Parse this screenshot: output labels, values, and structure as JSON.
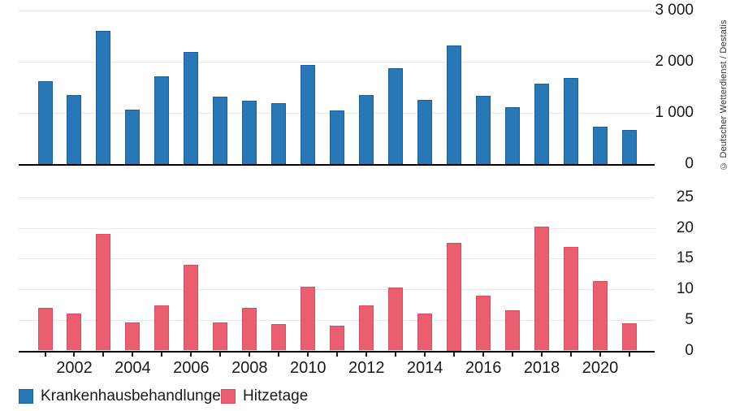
{
  "credit": "© Deutscher Wetterdienst / Destatis",
  "legend": [
    {
      "label": "Krankenhausbehandlungen",
      "color": "#2878b8",
      "border": "#1c5f98"
    },
    {
      "label": "Hitzetage",
      "color": "#eb5e6f",
      "border": "#d44f63"
    }
  ],
  "colors": {
    "background": "#ffffff",
    "gridline": "#e7e7e7",
    "axis": "#000000",
    "text": "#1a1a1a",
    "blue": "#2878b8",
    "red": "#eb5e6f"
  },
  "xaxis": {
    "tick_years": [
      2001,
      2002,
      2003,
      2004,
      2005,
      2006,
      2007,
      2008,
      2009,
      2010,
      2011,
      2012,
      2013,
      2014,
      2015,
      2016,
      2017,
      2018,
      2019,
      2020,
      2021
    ],
    "label_years": [
      "2002",
      "2004",
      "2006",
      "2008",
      "2010",
      "2012",
      "2014",
      "2016",
      "2018",
      "2020"
    ]
  },
  "chart_data": [
    {
      "type": "bar",
      "name": "Krankenhausbehandlungen",
      "title": "",
      "xlabel": "",
      "ylabel": "",
      "categories": [
        2001,
        2002,
        2003,
        2004,
        2005,
        2006,
        2007,
        2008,
        2009,
        2010,
        2011,
        2012,
        2013,
        2014,
        2015,
        2016,
        2017,
        2018,
        2019,
        2020,
        2021
      ],
      "values": [
        1620,
        1350,
        2600,
        1060,
        1720,
        2190,
        1310,
        1240,
        1190,
        1940,
        1040,
        1350,
        1870,
        1260,
        2320,
        1330,
        1110,
        1570,
        1680,
        730,
        660
      ],
      "ylim": [
        0,
        3000
      ],
      "yticks": [
        0,
        1000,
        2000,
        3000
      ],
      "ytick_labels": [
        "0",
        "1 000",
        "2 000",
        "3 000"
      ],
      "grid": true,
      "legend_position": "bottom",
      "bar_color": "#2878b8",
      "bar_border": "#1c5f98"
    },
    {
      "type": "bar",
      "name": "Hitzetage",
      "title": "",
      "xlabel": "",
      "ylabel": "",
      "categories": [
        2001,
        2002,
        2003,
        2004,
        2005,
        2006,
        2007,
        2008,
        2009,
        2010,
        2011,
        2012,
        2013,
        2014,
        2015,
        2016,
        2017,
        2018,
        2019,
        2020,
        2021
      ],
      "values": [
        7.0,
        6.0,
        19.0,
        4.6,
        7.4,
        14.0,
        4.6,
        6.9,
        4.3,
        10.4,
        4.0,
        7.4,
        10.3,
        6.0,
        17.5,
        9.0,
        6.6,
        20.2,
        16.9,
        11.3,
        4.5
      ],
      "ylim": [
        0,
        25
      ],
      "yticks": [
        0,
        5,
        10,
        15,
        20,
        25
      ],
      "ytick_labels": [
        "0",
        "5",
        "10",
        "15",
        "20",
        "25"
      ],
      "grid": true,
      "legend_position": "bottom",
      "bar_color": "#eb5e6f",
      "bar_border": "#d44f63"
    }
  ]
}
